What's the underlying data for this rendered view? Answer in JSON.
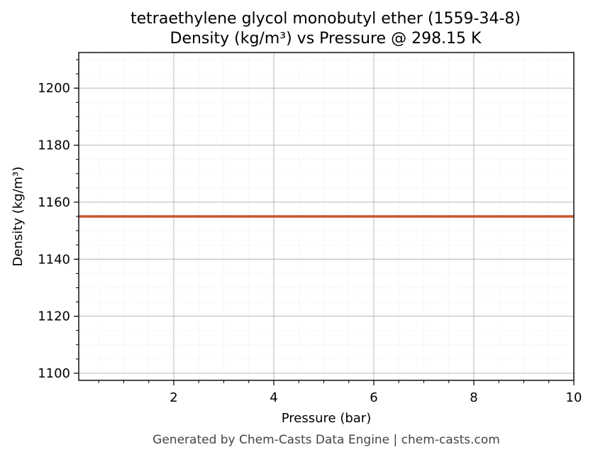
{
  "chart_data": {
    "type": "line",
    "title_line1": "tetraethylene glycol monobutyl ether (1559-34-8)",
    "title_line2": "Density (kg/m³) vs Pressure @ 298.15 K",
    "xlabel": "Pressure (bar)",
    "ylabel": "Density (kg/m³)",
    "xlim": [
      0.1,
      10
    ],
    "ylim": [
      1097.5,
      1212.5
    ],
    "xticks": [
      2,
      4,
      6,
      8,
      10
    ],
    "yticks": [
      1100,
      1120,
      1140,
      1160,
      1180,
      1200
    ],
    "grid": true,
    "minor_grid": true,
    "series": [
      {
        "color": "#c8552b",
        "x": [
          0.1,
          1,
          2,
          3,
          4,
          5,
          6,
          7,
          8,
          9,
          10
        ],
        "y": [
          1155,
          1155,
          1155,
          1155,
          1155,
          1155,
          1155,
          1155,
          1155,
          1155,
          1155
        ]
      }
    ]
  },
  "footer": "Generated by Chem-Casts Data Engine | chem-casts.com"
}
